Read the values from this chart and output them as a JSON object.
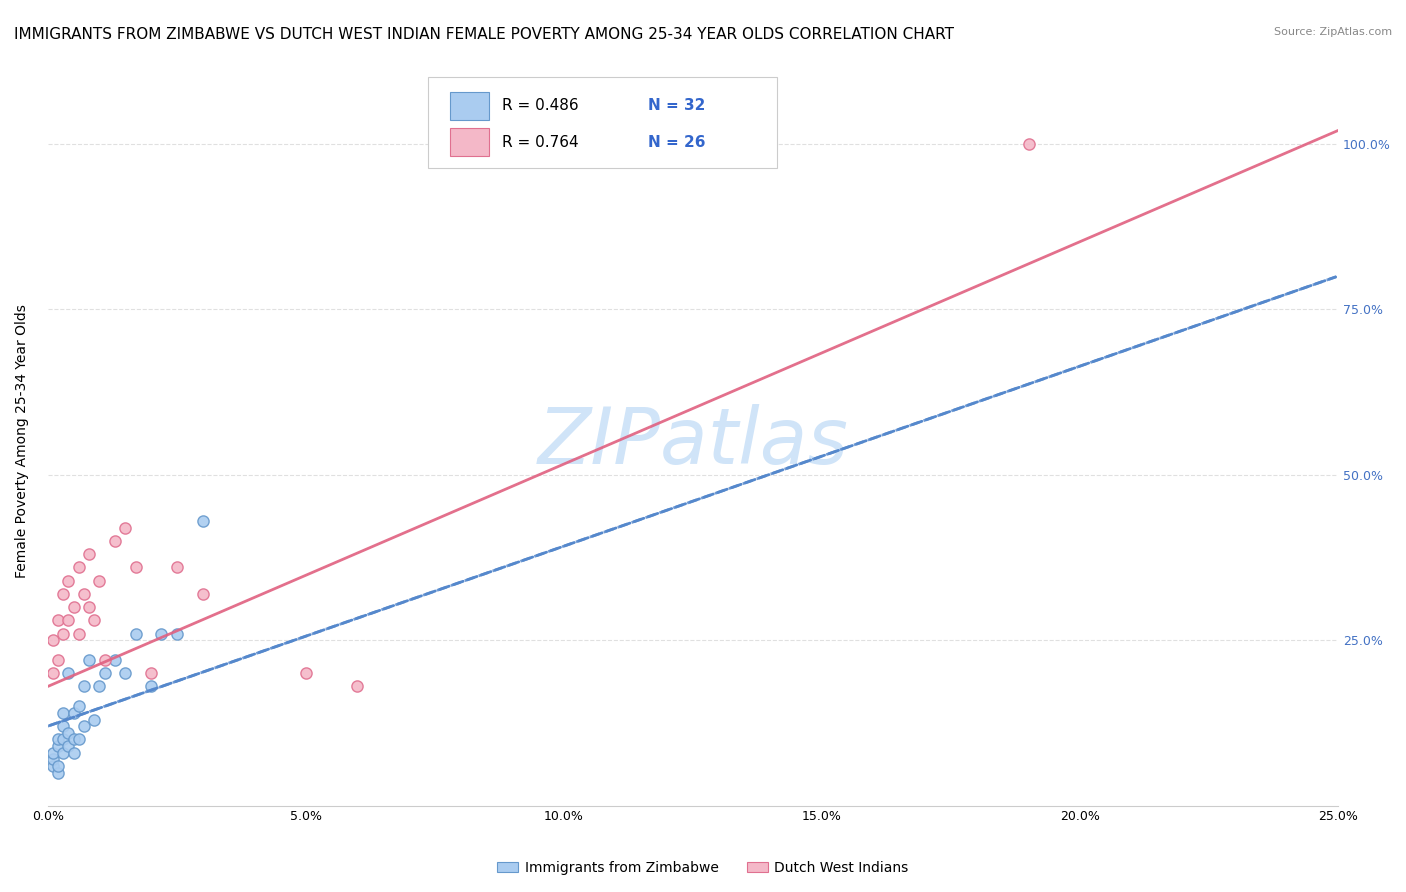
{
  "title": "IMMIGRANTS FROM ZIMBABWE VS DUTCH WEST INDIAN FEMALE POVERTY AMONG 25-34 YEAR OLDS CORRELATION CHART",
  "source": "Source: ZipAtlas.com",
  "ylabel": "Female Poverty Among 25-34 Year Olds",
  "xlim": [
    0.0,
    0.25
  ],
  "ylim": [
    0.0,
    1.1
  ],
  "xtick_labels": [
    "0.0%",
    "5.0%",
    "10.0%",
    "15.0%",
    "20.0%",
    "25.0%"
  ],
  "xtick_vals": [
    0.0,
    0.05,
    0.1,
    0.15,
    0.2,
    0.25
  ],
  "ytick_vals": [
    0.25,
    0.5,
    0.75,
    1.0
  ],
  "right_ytick_labels": [
    "25.0%",
    "50.0%",
    "75.0%",
    "100.0%"
  ],
  "right_ytick_vals": [
    0.25,
    0.5,
    0.75,
    1.0
  ],
  "legend_r1": "R = 0.486",
  "legend_n1": "N = 32",
  "legend_r2": "R = 0.764",
  "legend_n2": "N = 26",
  "series1_label": "Immigrants from Zimbabwe",
  "series2_label": "Dutch West Indians",
  "series1_color": "#aaccf0",
  "series2_color": "#f4b8c8",
  "series1_edge": "#6699cc",
  "series2_edge": "#e07090",
  "trend1_color": "#5588cc",
  "trend2_color": "#e06080",
  "watermark": "ZIPatlas",
  "watermark_color": "#d0e4f8",
  "background_color": "#ffffff",
  "grid_color": "#dddddd",
  "series1_x": [
    0.001,
    0.001,
    0.001,
    0.002,
    0.002,
    0.002,
    0.002,
    0.003,
    0.003,
    0.003,
    0.003,
    0.004,
    0.004,
    0.004,
    0.005,
    0.005,
    0.005,
    0.006,
    0.006,
    0.007,
    0.007,
    0.008,
    0.009,
    0.01,
    0.011,
    0.013,
    0.015,
    0.017,
    0.02,
    0.022,
    0.025,
    0.03
  ],
  "series1_y": [
    0.06,
    0.07,
    0.08,
    0.05,
    0.06,
    0.09,
    0.1,
    0.08,
    0.1,
    0.12,
    0.14,
    0.09,
    0.11,
    0.2,
    0.08,
    0.1,
    0.14,
    0.1,
    0.15,
    0.12,
    0.18,
    0.22,
    0.13,
    0.18,
    0.2,
    0.22,
    0.2,
    0.26,
    0.18,
    0.26,
    0.26,
    0.43
  ],
  "series2_x": [
    0.001,
    0.001,
    0.002,
    0.002,
    0.003,
    0.003,
    0.004,
    0.004,
    0.005,
    0.006,
    0.006,
    0.007,
    0.008,
    0.008,
    0.009,
    0.01,
    0.011,
    0.013,
    0.015,
    0.017,
    0.02,
    0.025,
    0.03,
    0.05,
    0.06,
    0.19
  ],
  "series2_y": [
    0.2,
    0.25,
    0.22,
    0.28,
    0.26,
    0.32,
    0.28,
    0.34,
    0.3,
    0.26,
    0.36,
    0.32,
    0.3,
    0.38,
    0.28,
    0.34,
    0.22,
    0.4,
    0.42,
    0.36,
    0.2,
    0.36,
    0.32,
    0.2,
    0.18,
    1.0
  ],
  "trend1_x0": 0.0,
  "trend1_y0": 0.12,
  "trend1_x1": 0.25,
  "trend1_y1": 0.8,
  "trend2_x0": 0.0,
  "trend2_y0": 0.18,
  "trend2_x1": 0.25,
  "trend2_y1": 1.02,
  "title_fontsize": 11,
  "axis_label_fontsize": 10,
  "tick_fontsize": 9,
  "marker_size": 65
}
